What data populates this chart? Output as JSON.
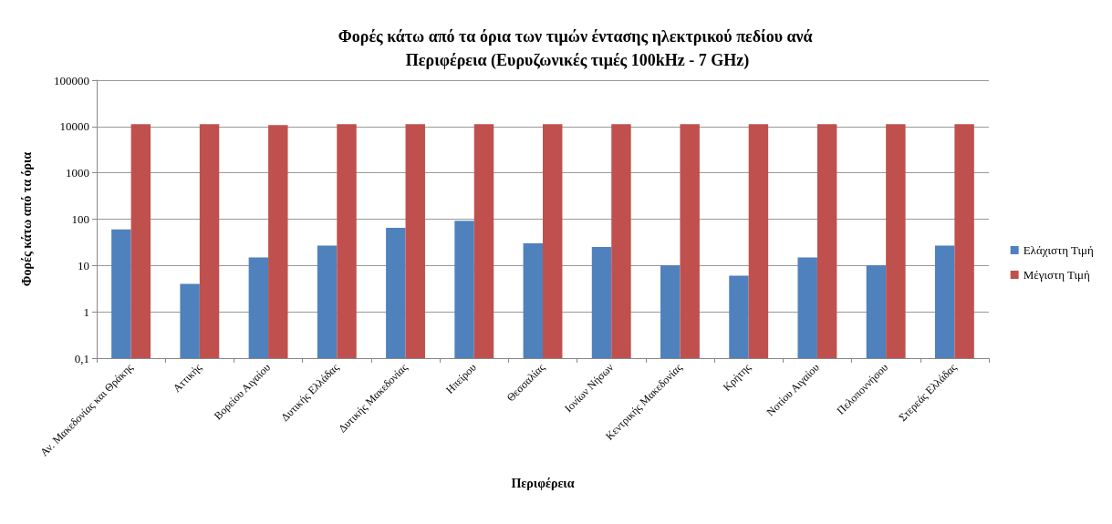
{
  "chart_data": {
    "type": "bar",
    "title": "Φορές κάτω από τα όρια των τιμών έντασης ηλεκτρικού πεδίου ανά Περιφέρεια (Ευρυζωνικές τιμές 100kHz - 7 GHz)",
    "xlabel": "Περιφέρεια",
    "ylabel": "Φορές κάτω από τα όρια",
    "categories": [
      "Αν. Μακεδονίας και Θράκης",
      "Αττικής",
      "Βορείου Αιγαίου",
      "Δυτικής Ελλάδας",
      "Δυτικής Μακεδονίας",
      "Ηπείρου",
      "Θεσσαλίας",
      "Ιονίων Νήσων",
      "Κεντρικής Μακεδονίας",
      "Κρήτης",
      "Νοτίου Αιγαίου",
      "Πελοποννήσου",
      "Στερεάς Ελλάδας"
    ],
    "series": [
      {
        "name": "Ελάχιστη Τιμή",
        "color": "#4f81bd",
        "values": [
          60,
          4,
          15,
          27,
          65,
          92,
          30,
          25,
          10,
          6,
          15,
          10,
          27
        ]
      },
      {
        "name": "Μέγιστη Τιμή",
        "color": "#c0504d",
        "values": [
          11200,
          11200,
          10700,
          11200,
          11200,
          11200,
          11200,
          11200,
          11200,
          11200,
          11200,
          11200,
          11200
        ]
      }
    ],
    "log": true,
    "ylim": [
      0.1,
      100000
    ],
    "yticks": [
      {
        "value": 0.1,
        "label": "0,1"
      },
      1,
      10,
      100,
      1000,
      10000,
      100000
    ],
    "grid": "y",
    "legend": "right"
  }
}
